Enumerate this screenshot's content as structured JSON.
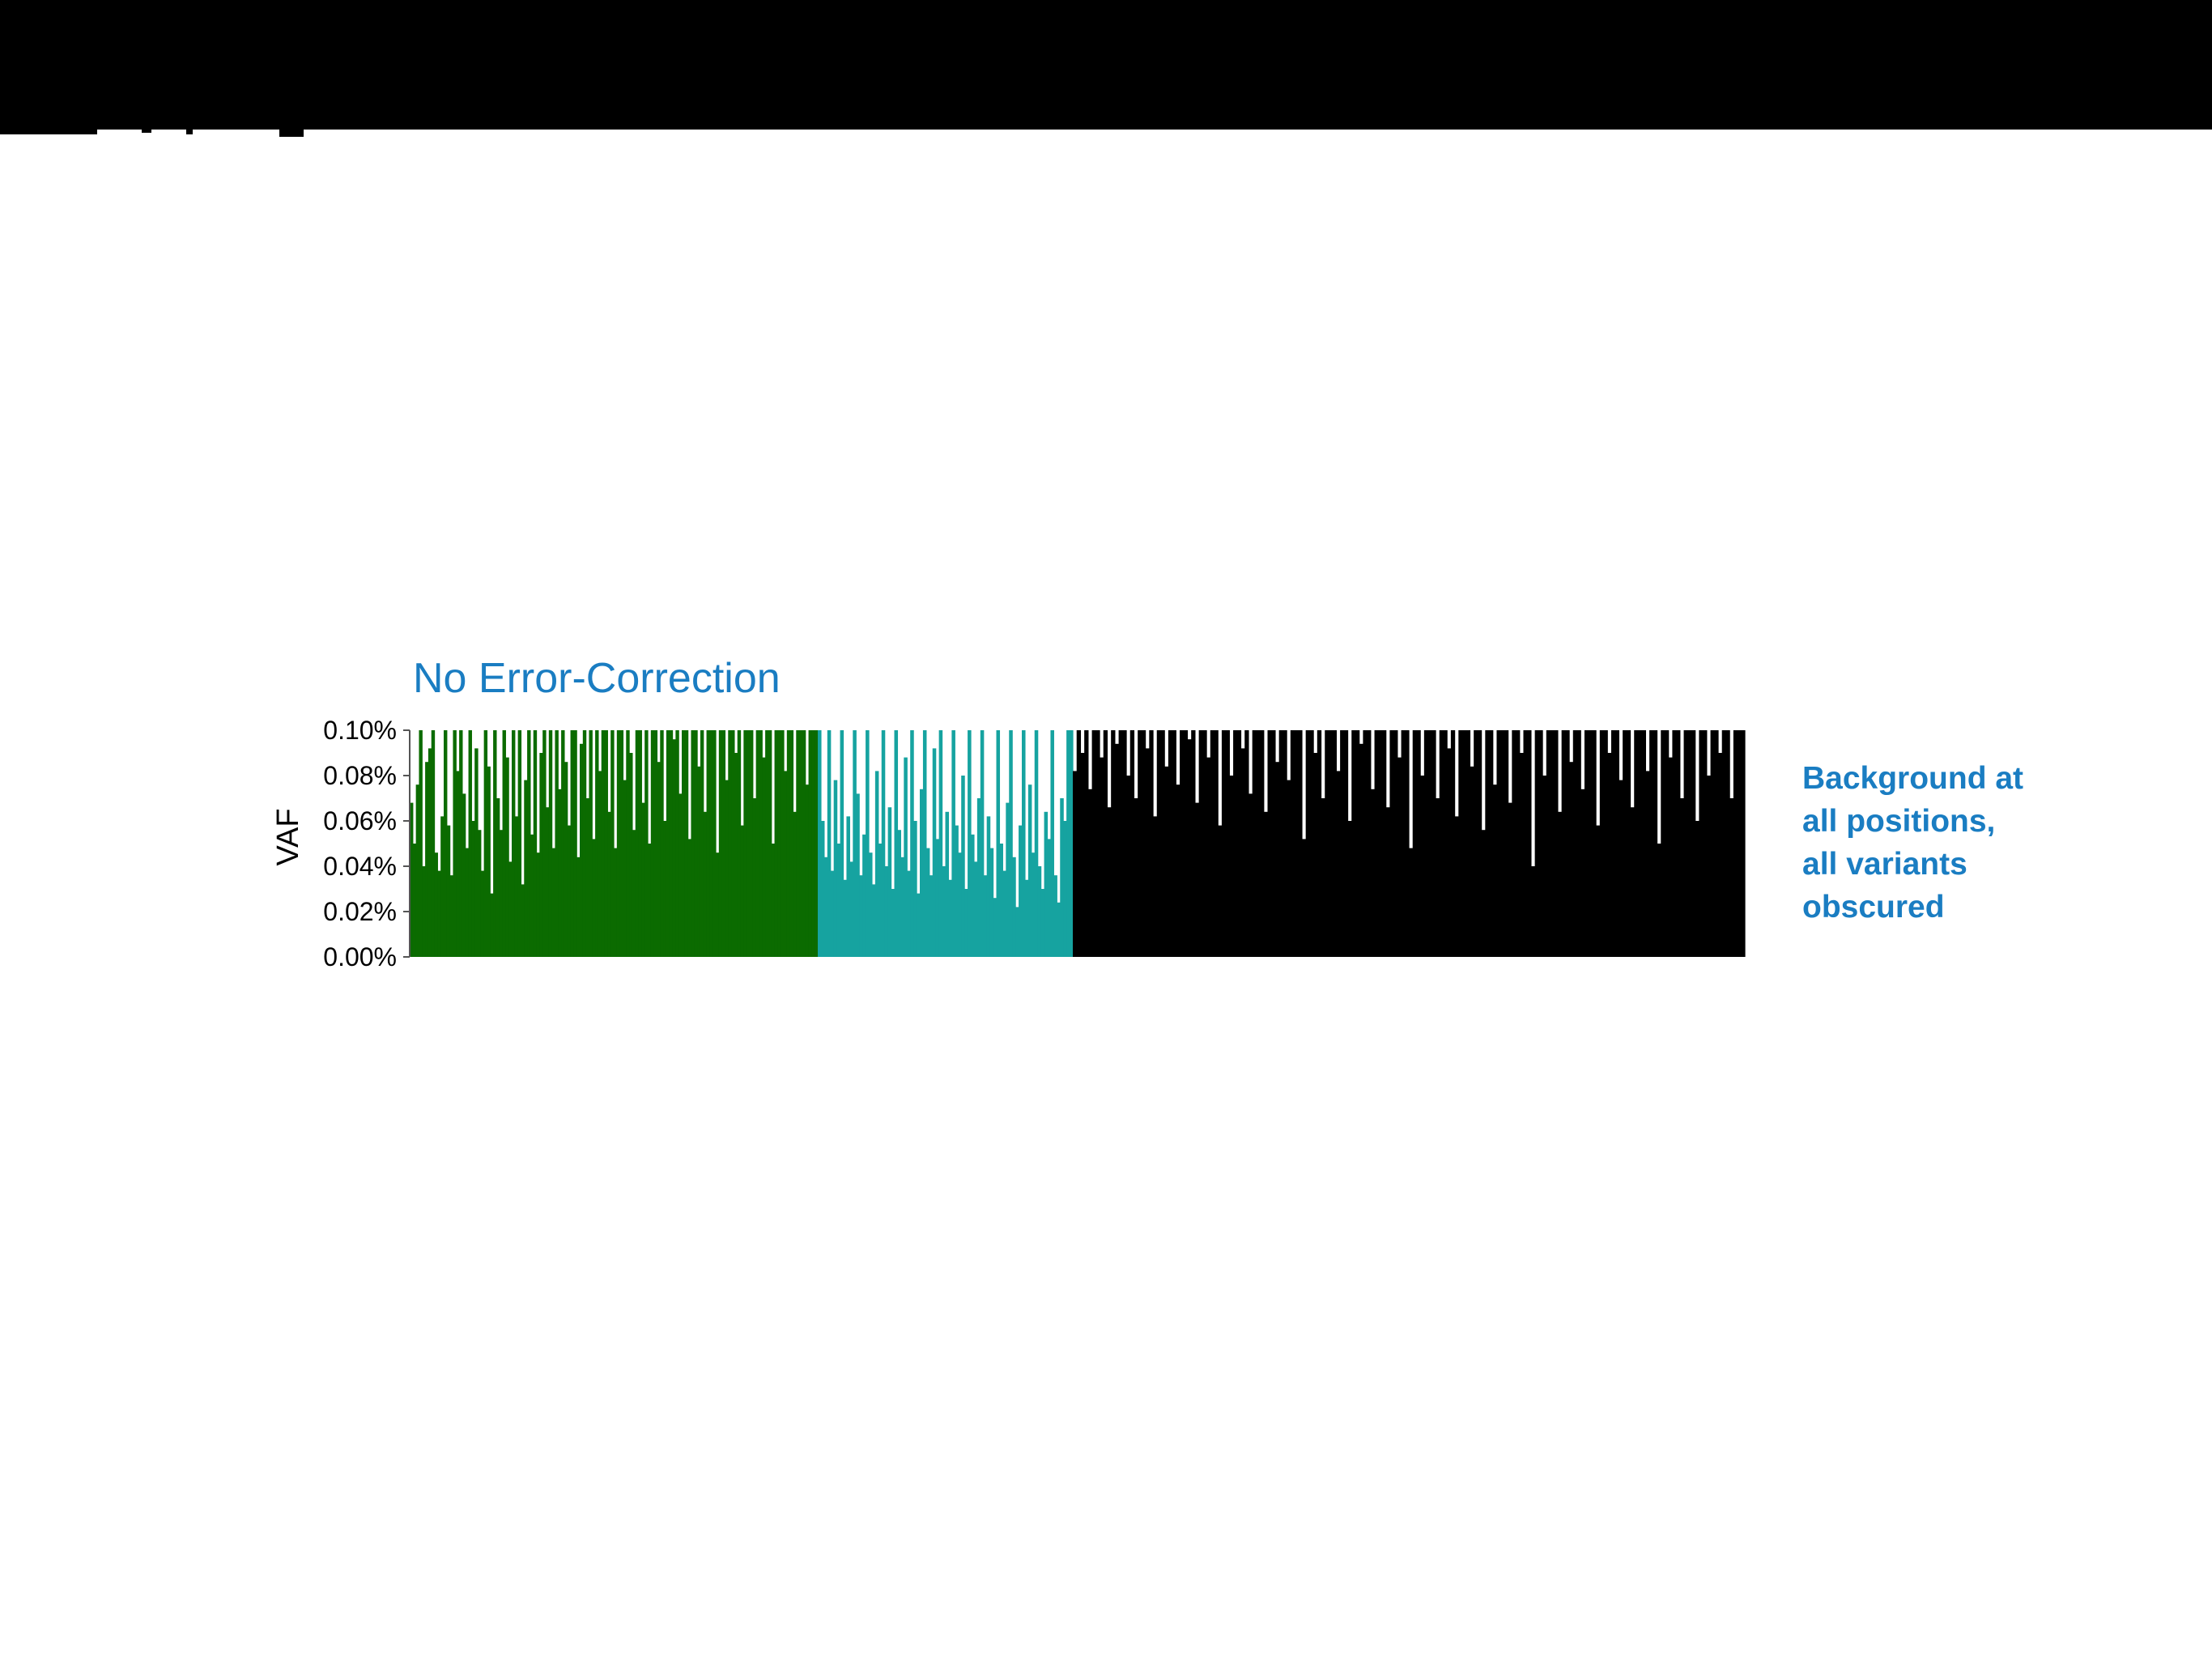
{
  "chart_data": {
    "type": "bar",
    "title": "No Error-Correction",
    "ylabel": "VAF",
    "ylim": [
      0,
      0.1
    ],
    "y_ticks": [
      {
        "value": 0.1,
        "label": "0.10%"
      },
      {
        "value": 0.08,
        "label": "0.08%"
      },
      {
        "value": 0.06,
        "label": "0.06%"
      },
      {
        "value": 0.04,
        "label": "0.04%"
      },
      {
        "value": 0.02,
        "label": "0.02%"
      },
      {
        "value": 0.0,
        "label": "0.00%"
      }
    ],
    "series": [
      {
        "color": "#0b6b00",
        "values": [
          0.068,
          0.05,
          0.076,
          0.1,
          0.04,
          0.086,
          0.092,
          0.1,
          0.046,
          0.038,
          0.062,
          0.1,
          0.058,
          0.036,
          0.1,
          0.082,
          0.1,
          0.072,
          0.048,
          0.1,
          0.06,
          0.092,
          0.056,
          0.038,
          0.1,
          0.084,
          0.028,
          0.1,
          0.07,
          0.056,
          0.1,
          0.088,
          0.042,
          0.1,
          0.062,
          0.1,
          0.032,
          0.078,
          0.1,
          0.054,
          0.1,
          0.046,
          0.09,
          0.1,
          0.066,
          0.1,
          0.048,
          0.1,
          0.074,
          0.1,
          0.086,
          0.058,
          0.1,
          0.1,
          0.044,
          0.094,
          0.1,
          0.07,
          0.1,
          0.052,
          0.1,
          0.082,
          0.1,
          0.1,
          0.064,
          0.1,
          0.048,
          0.1,
          0.1,
          0.078,
          0.1,
          0.09,
          0.056,
          0.1,
          0.1,
          0.068,
          0.1,
          0.05,
          0.1,
          0.1,
          0.086,
          0.1,
          0.06,
          0.1,
          0.1,
          0.096,
          0.1,
          0.072,
          0.1,
          0.1,
          0.052,
          0.1,
          0.1,
          0.084,
          0.1,
          0.064,
          0.1,
          0.1,
          0.1,
          0.046,
          0.1,
          0.1,
          0.078,
          0.1,
          0.1,
          0.09,
          0.1,
          0.058,
          0.1,
          0.1,
          0.1,
          0.07,
          0.1,
          0.1,
          0.088,
          0.1,
          0.1,
          0.05,
          0.1,
          0.1,
          0.1,
          0.082,
          0.1,
          0.1,
          0.064,
          0.1,
          0.1,
          0.1,
          0.076,
          0.1,
          0.1,
          0.1
        ]
      },
      {
        "color": "#16a3a0",
        "values": [
          0.1,
          0.06,
          0.044,
          0.1,
          0.038,
          0.078,
          0.05,
          0.1,
          0.034,
          0.062,
          0.042,
          0.1,
          0.072,
          0.036,
          0.054,
          0.1,
          0.046,
          0.032,
          0.082,
          0.05,
          0.1,
          0.04,
          0.066,
          0.03,
          0.1,
          0.056,
          0.044,
          0.088,
          0.038,
          0.1,
          0.06,
          0.028,
          0.074,
          0.1,
          0.048,
          0.036,
          0.092,
          0.052,
          0.1,
          0.04,
          0.064,
          0.034,
          0.1,
          0.058,
          0.046,
          0.08,
          0.03,
          0.1,
          0.054,
          0.042,
          0.07,
          0.1,
          0.036,
          0.062,
          0.048,
          0.026,
          0.1,
          0.05,
          0.038,
          0.068,
          0.1,
          0.044,
          0.022,
          0.058,
          0.1,
          0.034,
          0.076,
          0.046,
          0.1,
          0.04,
          0.03,
          0.064,
          0.052,
          0.1,
          0.036,
          0.024,
          0.07,
          0.06,
          0.1,
          0.1
        ]
      },
      {
        "color": "#000000",
        "values": [
          0.082,
          0.1,
          0.09,
          0.1,
          0.074,
          0.1,
          0.1,
          0.088,
          0.1,
          0.066,
          0.1,
          0.094,
          0.1,
          0.1,
          0.08,
          0.1,
          0.07,
          0.1,
          0.1,
          0.092,
          0.1,
          0.062,
          0.1,
          0.1,
          0.084,
          0.1,
          0.1,
          0.076,
          0.1,
          0.1,
          0.096,
          0.1,
          0.068,
          0.1,
          0.1,
          0.088,
          0.1,
          0.1,
          0.058,
          0.1,
          0.1,
          0.08,
          0.1,
          0.1,
          0.092,
          0.1,
          0.072,
          0.1,
          0.1,
          0.1,
          0.064,
          0.1,
          0.1,
          0.086,
          0.1,
          0.1,
          0.078,
          0.1,
          0.1,
          0.1,
          0.052,
          0.1,
          0.1,
          0.09,
          0.1,
          0.07,
          0.1,
          0.1,
          0.1,
          0.082,
          0.1,
          0.1,
          0.06,
          0.1,
          0.1,
          0.094,
          0.1,
          0.1,
          0.074,
          0.1,
          0.1,
          0.1,
          0.066,
          0.1,
          0.1,
          0.088,
          0.1,
          0.1,
          0.048,
          0.1,
          0.1,
          0.08,
          0.1,
          0.1,
          0.1,
          0.07,
          0.1,
          0.1,
          0.092,
          0.1,
          0.062,
          0.1,
          0.1,
          0.1,
          0.084,
          0.1,
          0.1,
          0.056,
          0.1,
          0.1,
          0.076,
          0.1,
          0.1,
          0.1,
          0.068,
          0.1,
          0.1,
          0.09,
          0.1,
          0.1,
          0.04,
          0.1,
          0.1,
          0.08,
          0.1,
          0.1,
          0.1,
          0.064,
          0.1,
          0.1,
          0.086,
          0.1,
          0.1,
          0.074,
          0.1,
          0.1,
          0.1,
          0.058,
          0.1,
          0.1,
          0.09,
          0.1,
          0.1,
          0.078,
          0.1,
          0.1,
          0.066,
          0.1,
          0.1,
          0.1,
          0.082,
          0.1,
          0.1,
          0.05,
          0.1,
          0.1,
          0.088,
          0.1,
          0.1,
          0.07,
          0.1,
          0.1,
          0.1,
          0.06,
          0.1,
          0.1,
          0.08,
          0.1,
          0.1,
          0.09,
          0.1,
          0.1,
          0.07,
          0.1,
          0.1,
          0.1
        ]
      }
    ]
  },
  "annotation": {
    "lines": [
      "Background at",
      "all positions,",
      "all variants",
      "obscured"
    ]
  },
  "colors": {
    "accent_text": "#1a7dc2",
    "top_bar": "#000000"
  }
}
